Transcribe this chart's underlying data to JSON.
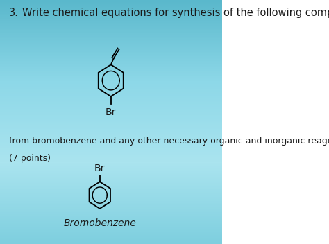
{
  "title_number": "3.",
  "title_text": "Write chemical equations for synthesis of the following compound",
  "from_text": "from bromobenzene and any other necessary organic and inorganic reagents.",
  "points_text": "(7 points)",
  "br_label_top": "Br",
  "br_label_bottom": "Br",
  "bromobenzene_label": "Bromobenzene",
  "bg_color_top": "#7ecfdf",
  "bg_color_bottom": "#5ab8cc",
  "text_color": "#1a1a1a",
  "title_fontsize": 10.5,
  "body_fontsize": 10,
  "label_fontsize": 10
}
